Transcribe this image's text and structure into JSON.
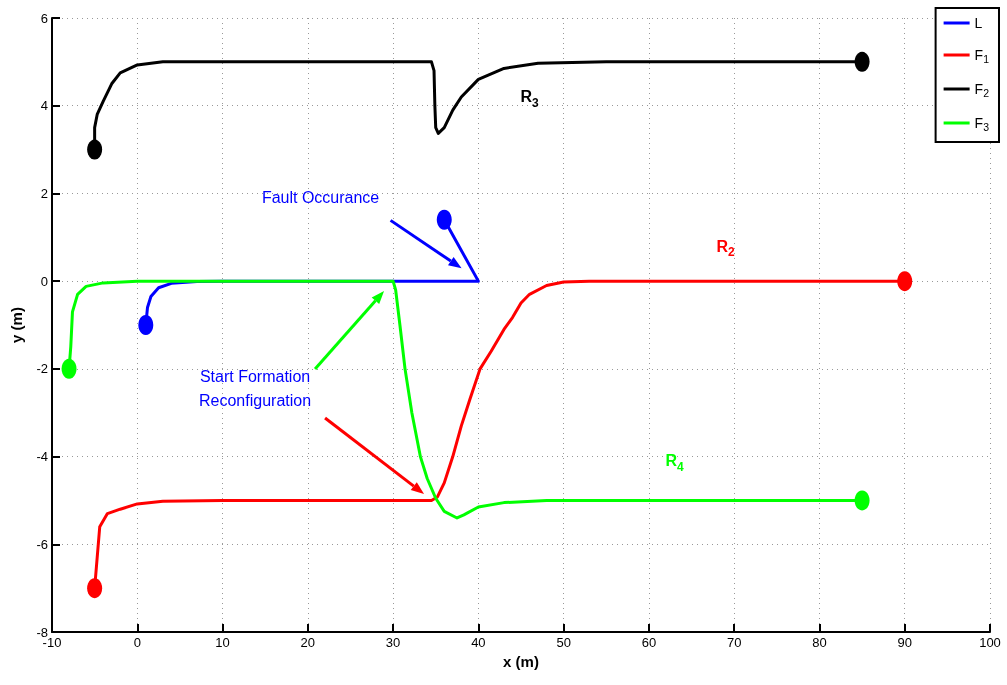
{
  "chart_data": {
    "type": "line",
    "xlabel": "x (m)",
    "ylabel": "y (m)",
    "xlim": [
      -10,
      100
    ],
    "xticks": [
      -10,
      0,
      10,
      20,
      30,
      40,
      50,
      60,
      70,
      80,
      90,
      100
    ],
    "ylim": [
      -8,
      6
    ],
    "yticks": [
      -8,
      -6,
      -4,
      -2,
      0,
      2,
      4,
      6
    ],
    "grid": true,
    "legend": "top right",
    "series": [
      {
        "name": "L",
        "color": "#0000ff",
        "x": [
          1,
          1.2,
          1.6,
          2.5,
          4,
          7,
          10,
          40,
          36
        ],
        "values": [
          -1,
          -0.6,
          -0.35,
          -0.15,
          -0.05,
          -0.01,
          0,
          0,
          1.4
        ]
      },
      {
        "name": "F$_{1}$",
        "color": "#ff0000",
        "x": [
          -5,
          -4.7,
          -4.4,
          -3.5,
          -2,
          0,
          3,
          10,
          34.5,
          35.2,
          36,
          37,
          38,
          39,
          40.2,
          41.5,
          43,
          44,
          45,
          46,
          48,
          50,
          53,
          90
        ],
        "values": [
          -7,
          -6.3,
          -5.6,
          -5.3,
          -5.2,
          -5.08,
          -5.02,
          -5,
          -5,
          -4.92,
          -4.6,
          -4,
          -3.3,
          -2.7,
          -2,
          -1.6,
          -1.1,
          -0.83,
          -0.5,
          -0.3,
          -0.1,
          -0.02,
          0,
          0
        ]
      },
      {
        "name": "F$_{2}$",
        "color": "#000000",
        "x": [
          -5,
          -5,
          -4.7,
          -4,
          -3,
          -2,
          0,
          3,
          34.5,
          34.8,
          34.9,
          35,
          35.3,
          36,
          37,
          38,
          40,
          43,
          47,
          55,
          85
        ],
        "values": [
          3,
          3.5,
          3.8,
          4.1,
          4.5,
          4.75,
          4.93,
          5,
          5,
          4.8,
          4,
          3.5,
          3.37,
          3.5,
          3.9,
          4.2,
          4.6,
          4.85,
          4.97,
          5,
          5
        ]
      },
      {
        "name": "F$_{3}$",
        "color": "#00ff00",
        "x": [
          -8,
          -7.8,
          -7.6,
          -7,
          -6,
          -4,
          0,
          30,
          30.3,
          30.8,
          31.4,
          32.2,
          33.2,
          34,
          35,
          36,
          37.5,
          38.3,
          40,
          43,
          48,
          85
        ],
        "values": [
          -2,
          -1.5,
          -0.7,
          -0.3,
          -0.12,
          -0.04,
          0,
          0,
          -0.2,
          -1,
          -2,
          -3,
          -4,
          -4.5,
          -4.95,
          -5.25,
          -5.4,
          -5.33,
          -5.15,
          -5.05,
          -5,
          -5
        ]
      },
      {
        "type": "scatter",
        "marker": "circle",
        "color": "#0000ff",
        "x": [
          1,
          36
        ],
        "values": [
          -1,
          1.4
        ]
      },
      {
        "type": "scatter",
        "marker": "circle",
        "color": "#ff0000",
        "x": [
          -5,
          90
        ],
        "values": [
          -7,
          0
        ]
      },
      {
        "type": "scatter",
        "marker": "circle",
        "color": "#000000",
        "x": [
          -5,
          85
        ],
        "values": [
          3,
          5
        ]
      },
      {
        "type": "scatter",
        "marker": "circle",
        "color": "#00ff00",
        "x": [
          -8,
          85
        ],
        "values": [
          -2,
          -5
        ]
      }
    ],
    "annotations": [
      "Fault Occurance",
      "Start Formation\nReconfiguration",
      "R$_{3}$",
      "R$_{2}$",
      "R$_{4}$"
    ]
  }
}
